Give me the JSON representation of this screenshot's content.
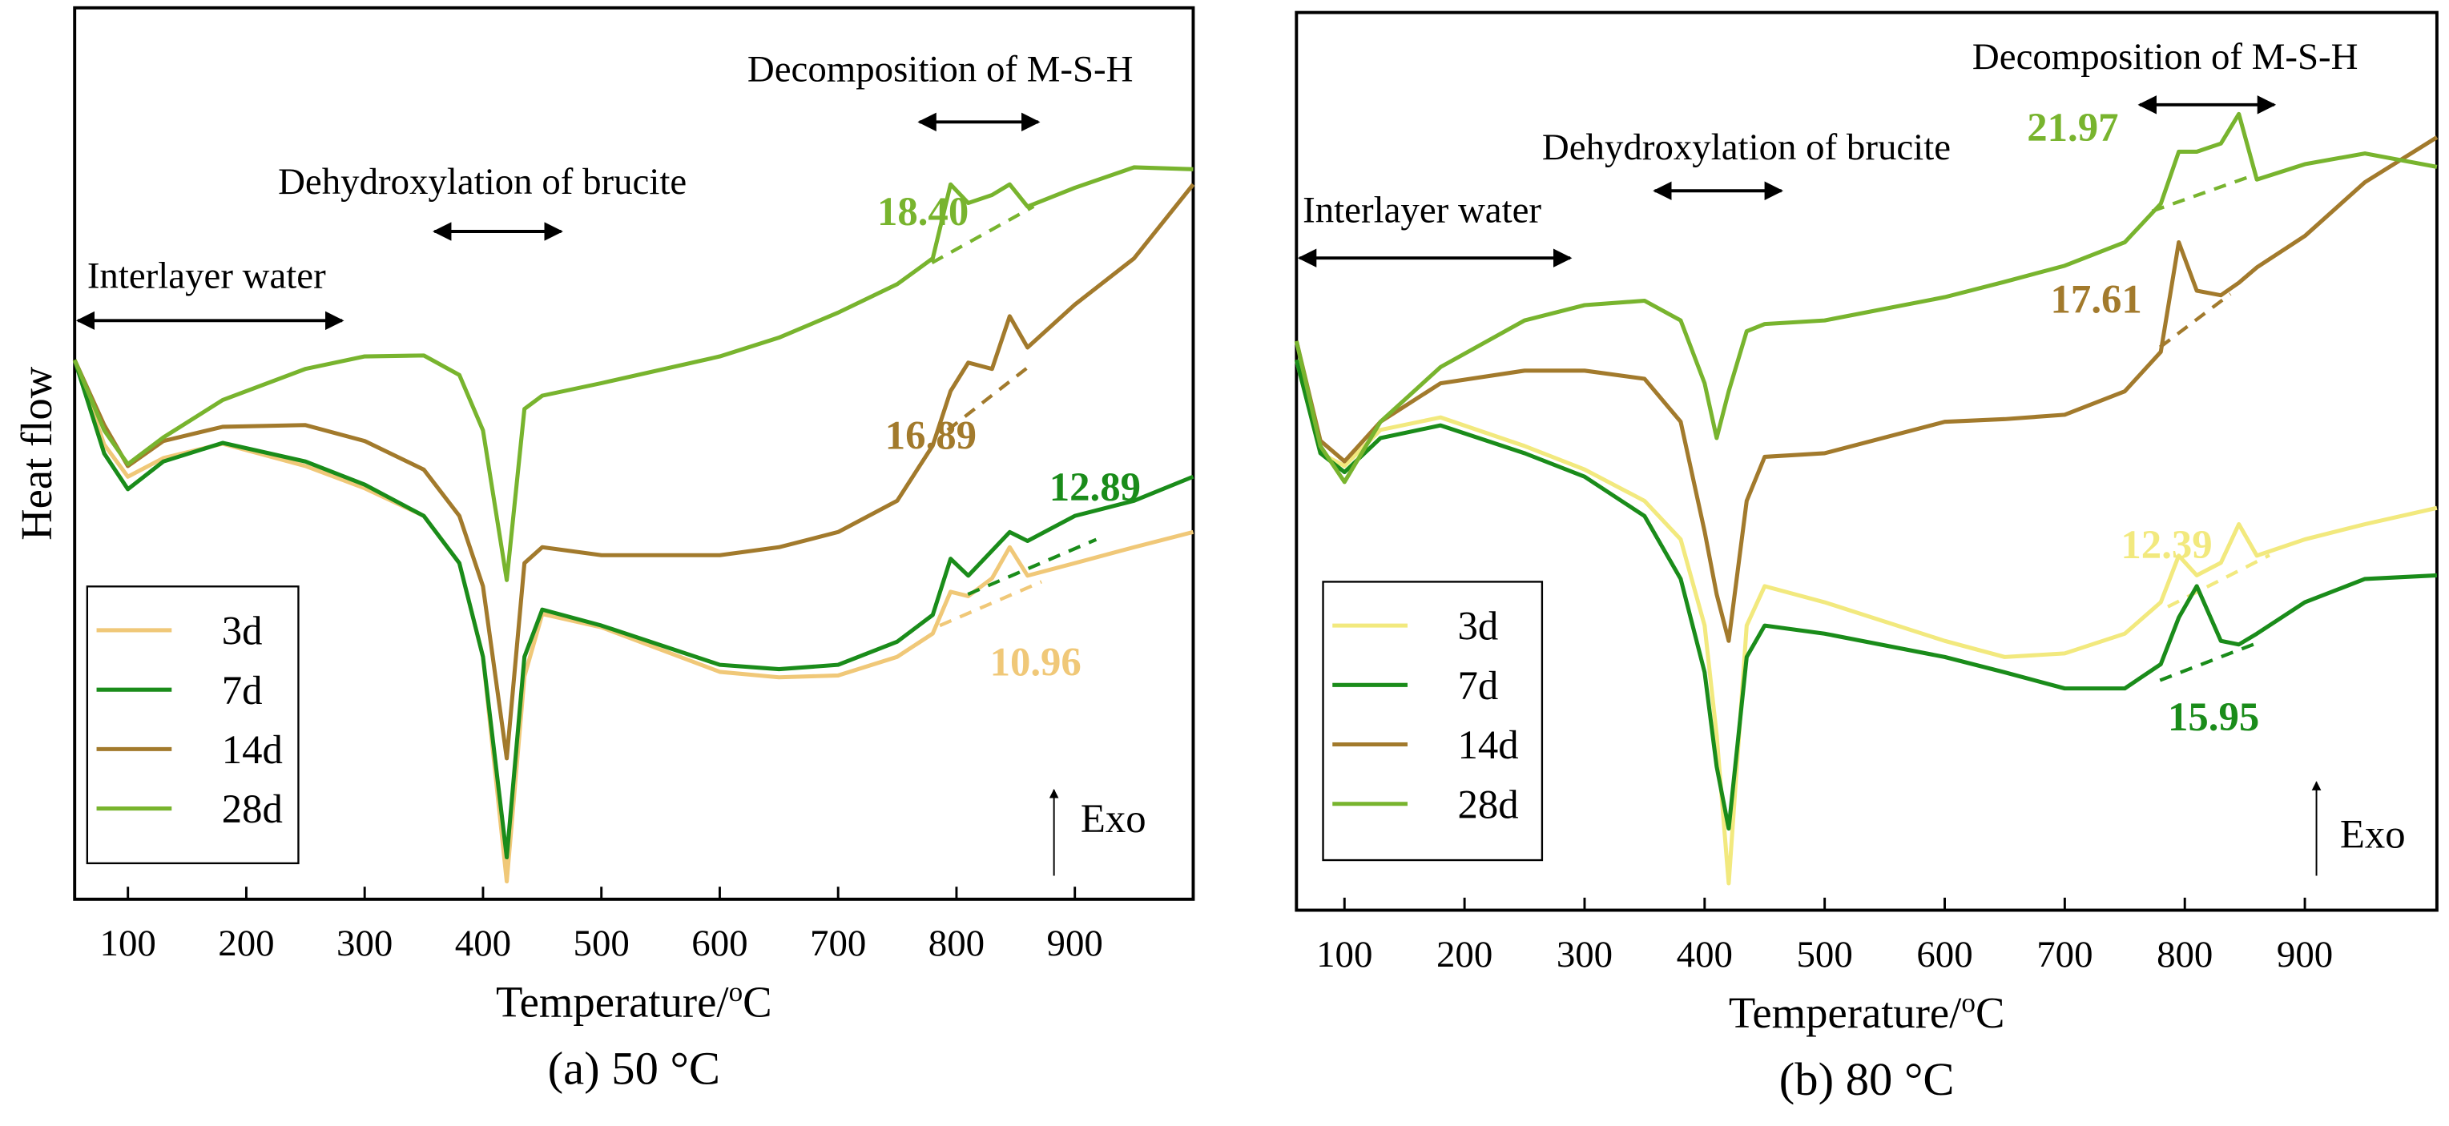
{
  "chart_data": [
    {
      "type": "line",
      "caption": "(a) 50 °C",
      "ylabel": "Heat flow",
      "xlabel": {
        "text": "Temperature/",
        "sup": "o",
        "unit": "C"
      },
      "xlim": [
        55,
        1000
      ],
      "ylim": [
        0,
        100
      ],
      "xticks": [
        100,
        200,
        300,
        400,
        500,
        600,
        700,
        800,
        900
      ],
      "x": [
        55,
        80,
        100,
        130,
        180,
        250,
        300,
        350,
        380,
        400,
        420,
        435,
        450,
        500,
        600,
        650,
        700,
        750,
        780,
        795,
        810,
        830,
        845,
        860,
        900,
        950,
        1000
      ],
      "series": [
        {
          "name": "3d",
          "color": "#f0c878",
          "values": [
            60.5,
            51.0,
            47.4,
            49.5,
            51.1,
            48.6,
            46.1,
            43.0,
            37.7,
            27.2,
            2.0,
            25.0,
            32.0,
            30.5,
            25.5,
            24.9,
            25.1,
            27.2,
            29.8,
            34.5,
            34.0,
            36.0,
            39.5,
            36.3,
            37.7,
            39.5,
            41.2
          ]
        },
        {
          "name": "7d",
          "color": "#1a8c1a",
          "values": [
            60.5,
            50.0,
            46.0,
            49.1,
            51.2,
            49.1,
            46.5,
            43.0,
            37.7,
            27.2,
            4.7,
            27.2,
            32.5,
            30.7,
            26.3,
            25.8,
            26.3,
            28.9,
            31.9,
            38.2,
            36.3,
            39.1,
            41.2,
            40.2,
            43.0,
            44.7,
            47.4
          ]
        },
        {
          "name": "14d",
          "color": "#a27a2c",
          "values": [
            60.5,
            53.2,
            48.6,
            51.4,
            53.0,
            53.2,
            51.4,
            48.2,
            43.0,
            35.1,
            15.8,
            37.7,
            39.5,
            38.6,
            38.6,
            39.5,
            41.2,
            44.7,
            50.9,
            57.0,
            60.2,
            59.5,
            65.4,
            61.9,
            66.7,
            71.9,
            80.2
          ]
        },
        {
          "name": "28d",
          "color": "#78b42e",
          "values": [
            60.5,
            52.6,
            48.8,
            51.8,
            56.0,
            59.5,
            60.9,
            61.0,
            58.8,
            52.6,
            35.8,
            55.0,
            56.5,
            57.9,
            60.9,
            63.0,
            65.8,
            69.0,
            71.9,
            80.2,
            78.1,
            79.0,
            80.2,
            77.7,
            79.8,
            82.1,
            81.9
          ]
        }
      ],
      "peak_labels": [
        "10.96",
        "12.89",
        "16.89",
        "18.40"
      ],
      "annotations": [
        "Interlayer water",
        "Dehydroxylation of brucite",
        "Decomposition of M-S-H"
      ],
      "exo": "Exo"
    },
    {
      "type": "line",
      "caption": "(b) 80 °C",
      "xlabel": {
        "text": "Temperature/",
        "sup": "o",
        "unit": "C"
      },
      "xlim": [
        60,
        1010
      ],
      "ylim": [
        0,
        100
      ],
      "xticks": [
        100,
        200,
        300,
        400,
        500,
        600,
        700,
        800,
        900
      ],
      "x": [
        60,
        80,
        100,
        130,
        180,
        250,
        300,
        350,
        380,
        400,
        410,
        420,
        435,
        450,
        500,
        600,
        650,
        700,
        750,
        780,
        795,
        810,
        830,
        845,
        860,
        900,
        950,
        1010
      ],
      "series": [
        {
          "name": "3d",
          "color": "#f2e97e",
          "values": [
            61.3,
            50.9,
            49.5,
            53.5,
            54.9,
            51.7,
            49.1,
            45.6,
            41.3,
            31.7,
            19.5,
            3.0,
            31.7,
            36.1,
            34.3,
            30.0,
            28.2,
            28.6,
            30.8,
            34.3,
            39.5,
            37.3,
            38.7,
            43.0,
            39.5,
            41.3,
            43.0,
            44.8
          ]
        },
        {
          "name": "7d",
          "color": "#1a8c1a",
          "values": [
            61.3,
            50.9,
            48.8,
            52.6,
            54.0,
            50.9,
            48.3,
            43.9,
            36.9,
            26.5,
            16.0,
            9.1,
            28.2,
            31.7,
            30.8,
            28.2,
            26.5,
            24.7,
            24.7,
            27.4,
            32.6,
            36.1,
            30.0,
            29.6,
            30.8,
            34.3,
            36.9,
            37.3
          ]
        },
        {
          "name": "14d",
          "color": "#a27a2c",
          "values": [
            63.4,
            52.3,
            50.0,
            54.4,
            58.7,
            60.1,
            60.1,
            59.2,
            54.4,
            42.2,
            35.2,
            30.0,
            45.6,
            50.5,
            50.9,
            54.4,
            54.7,
            55.2,
            57.8,
            62.2,
            74.4,
            69.0,
            68.5,
            69.9,
            71.6,
            75.1,
            81.1,
            86.1
          ]
        },
        {
          "name": "28d",
          "color": "#78b42e",
          "values": [
            63.4,
            51.7,
            47.7,
            54.4,
            60.5,
            65.7,
            67.4,
            67.9,
            65.7,
            58.7,
            52.6,
            57.8,
            64.5,
            65.3,
            65.7,
            68.3,
            70.0,
            71.8,
            74.4,
            78.7,
            84.5,
            84.5,
            85.4,
            88.7,
            81.4,
            83.1,
            84.3,
            82.8
          ]
        }
      ],
      "peak_labels": [
        "12.39",
        "15.95",
        "17.61",
        "21.97"
      ],
      "annotations": [
        "Interlayer water",
        "Dehydroxylation of brucite",
        "Decomposition of M-S-H"
      ],
      "exo": "Exo"
    }
  ]
}
